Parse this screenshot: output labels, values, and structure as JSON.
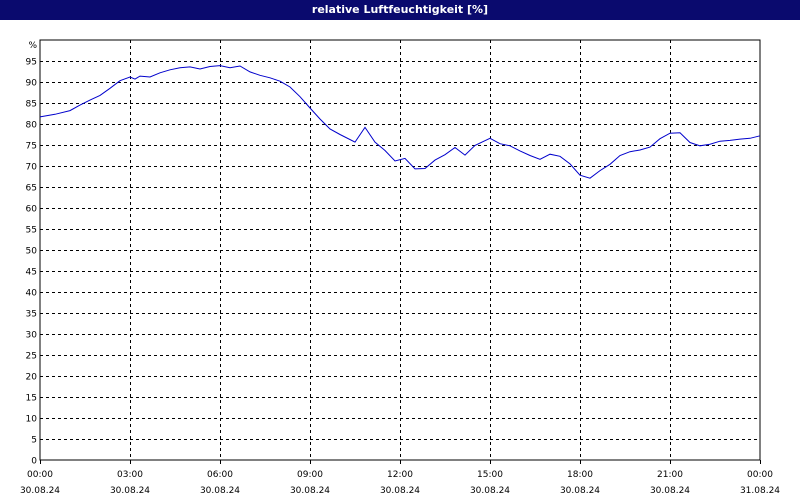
{
  "window": {
    "title": "relative Luftfeuchtigkeit [%]"
  },
  "chart_data": {
    "type": "line",
    "title": "relative Luftfeuchtigkeit [%]",
    "ylabel": "%",
    "xlabel": "",
    "ylim": [
      0,
      100
    ],
    "xlim": [
      "2024-08-30 00:00",
      "2024-08-31 00:00"
    ],
    "grid": true,
    "y_ticks": [
      "0",
      "5",
      "10",
      "15",
      "20",
      "25",
      "30",
      "35",
      "40",
      "45",
      "50",
      "55",
      "60",
      "65",
      "70",
      "75",
      "80",
      "85",
      "90",
      "95"
    ],
    "x_ticks": [
      {
        "time": "00:00",
        "date": "30.08.24"
      },
      {
        "time": "03:00",
        "date": "30.08.24"
      },
      {
        "time": "06:00",
        "date": "30.08.24"
      },
      {
        "time": "09:00",
        "date": "30.08.24"
      },
      {
        "time": "12:00",
        "date": "30.08.24"
      },
      {
        "time": "15:00",
        "date": "30.08.24"
      },
      {
        "time": "18:00",
        "date": "30.08.24"
      },
      {
        "time": "21:00",
        "date": "30.08.24"
      },
      {
        "time": "00:00",
        "date": "31.08.24"
      }
    ],
    "series": [
      {
        "color": "#0000cc",
        "x": [
          "2024-08-30 00:00",
          "2024-08-30 00:30",
          "2024-08-30 01:00",
          "2024-08-30 01:20",
          "2024-08-30 01:40",
          "2024-08-30 02:00",
          "2024-08-30 02:20",
          "2024-08-30 02:40",
          "2024-08-30 03:00",
          "2024-08-30 03:10",
          "2024-08-30 03:20",
          "2024-08-30 03:40",
          "2024-08-30 04:00",
          "2024-08-30 04:20",
          "2024-08-30 04:40",
          "2024-08-30 05:00",
          "2024-08-30 05:20",
          "2024-08-30 05:40",
          "2024-08-30 06:00",
          "2024-08-30 06:20",
          "2024-08-30 06:40",
          "2024-08-30 07:00",
          "2024-08-30 07:20",
          "2024-08-30 07:40",
          "2024-08-30 08:00",
          "2024-08-30 08:20",
          "2024-08-30 08:40",
          "2024-08-30 09:00",
          "2024-08-30 09:20",
          "2024-08-30 09:40",
          "2024-08-30 10:00",
          "2024-08-30 10:30",
          "2024-08-30 10:50",
          "2024-08-30 11:10",
          "2024-08-30 11:30",
          "2024-08-30 11:50",
          "2024-08-30 12:10",
          "2024-08-30 12:30",
          "2024-08-30 12:50",
          "2024-08-30 13:10",
          "2024-08-30 13:30",
          "2024-08-30 13:50",
          "2024-08-30 14:10",
          "2024-08-30 14:30",
          "2024-08-30 15:00",
          "2024-08-30 15:20",
          "2024-08-30 15:40",
          "2024-08-30 16:00",
          "2024-08-30 16:20",
          "2024-08-30 16:40",
          "2024-08-30 17:00",
          "2024-08-30 17:20",
          "2024-08-30 17:40",
          "2024-08-30 18:00",
          "2024-08-30 18:20",
          "2024-08-30 18:40",
          "2024-08-30 19:00",
          "2024-08-30 19:20",
          "2024-08-30 19:40",
          "2024-08-30 20:00",
          "2024-08-30 20:20",
          "2024-08-30 20:40",
          "2024-08-30 21:00",
          "2024-08-30 21:20",
          "2024-08-30 21:40",
          "2024-08-30 22:00",
          "2024-08-30 22:20",
          "2024-08-30 22:40",
          "2024-08-30 23:00",
          "2024-08-30 23:20",
          "2024-08-30 23:40",
          "2024-08-31 00:00"
        ],
        "values": [
          81.7,
          82.3,
          83.2,
          84.5,
          85.7,
          86.8,
          88.5,
          90.3,
          91.2,
          90.7,
          91.4,
          91.2,
          92.2,
          92.9,
          93.4,
          93.6,
          93.1,
          93.7,
          93.9,
          93.4,
          93.8,
          92.4,
          91.6,
          91.0,
          90.2,
          88.8,
          86.5,
          83.8,
          81.2,
          78.8,
          77.5,
          75.7,
          79.2,
          75.7,
          73.7,
          71.2,
          71.8,
          69.3,
          69.4,
          71.4,
          72.7,
          74.4,
          72.6,
          74.9,
          76.6,
          75.3,
          74.8,
          73.6,
          72.5,
          71.6,
          72.8,
          72.3,
          70.5,
          67.8,
          67.1,
          68.9,
          70.4,
          72.5,
          73.4,
          73.8,
          74.5,
          76.5,
          77.8,
          77.9,
          75.6,
          74.8,
          75.2,
          75.9,
          76.1,
          76.4,
          76.6,
          77.2
        ]
      }
    ]
  }
}
